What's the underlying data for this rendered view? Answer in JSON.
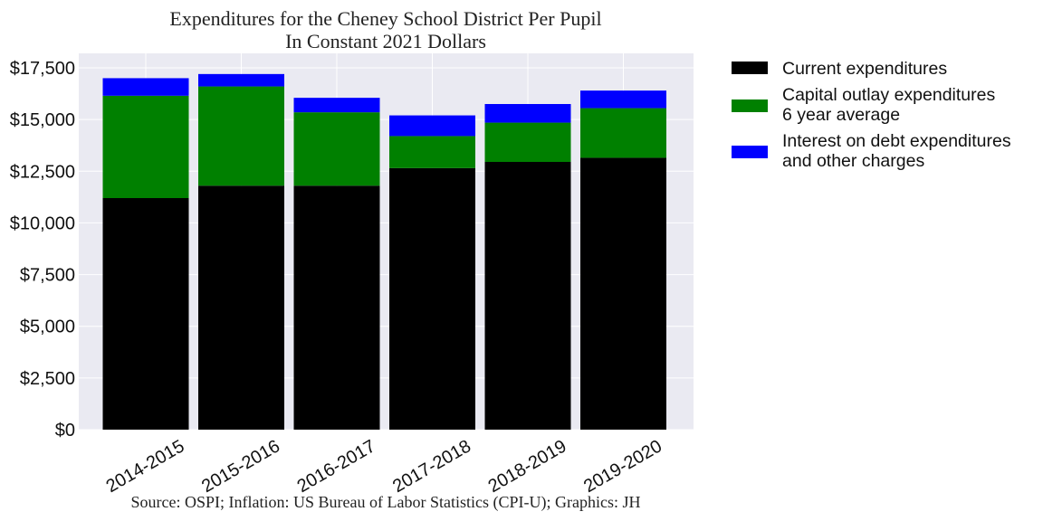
{
  "chart_data": {
    "type": "bar",
    "stacked": true,
    "title": [
      "Expenditures for the Cheney School District Per Pupil",
      "In Constant 2021 Dollars"
    ],
    "source": "Source: OSPI; Inflation: US Bureau of Labor Statistics (CPI-U); Graphics: JH",
    "xlabel": "",
    "ylabel": "",
    "categories": [
      "2014-2015",
      "2015-2016",
      "2016-2017",
      "2017-2018",
      "2018-2019",
      "2019-2020"
    ],
    "series": [
      {
        "name": "Current expenditures",
        "color": "#000000",
        "values": [
          11200,
          11800,
          11800,
          12650,
          12950,
          13150
        ]
      },
      {
        "name": "Capital outlay expenditures\n6 year average",
        "color": "#008000",
        "values": [
          4950,
          4800,
          3550,
          1550,
          1900,
          2400
        ]
      },
      {
        "name": "Interest on debt expenditures\nand other charges",
        "color": "#0000ff",
        "values": [
          850,
          600,
          700,
          1000,
          900,
          850
        ]
      }
    ],
    "ylim": [
      0,
      18200
    ],
    "yticks": [
      0,
      2500,
      5000,
      7500,
      10000,
      12500,
      15000,
      17500
    ],
    "ytick_labels": [
      "$0",
      "$2,500",
      "$5,000",
      "$7,500",
      "$10,000",
      "$12,500",
      "$15,000",
      "$17,500"
    ],
    "xtick_rotation": 30,
    "grid": true,
    "legend_position": "outside-right-top",
    "background_color": "#eaeaf2"
  }
}
